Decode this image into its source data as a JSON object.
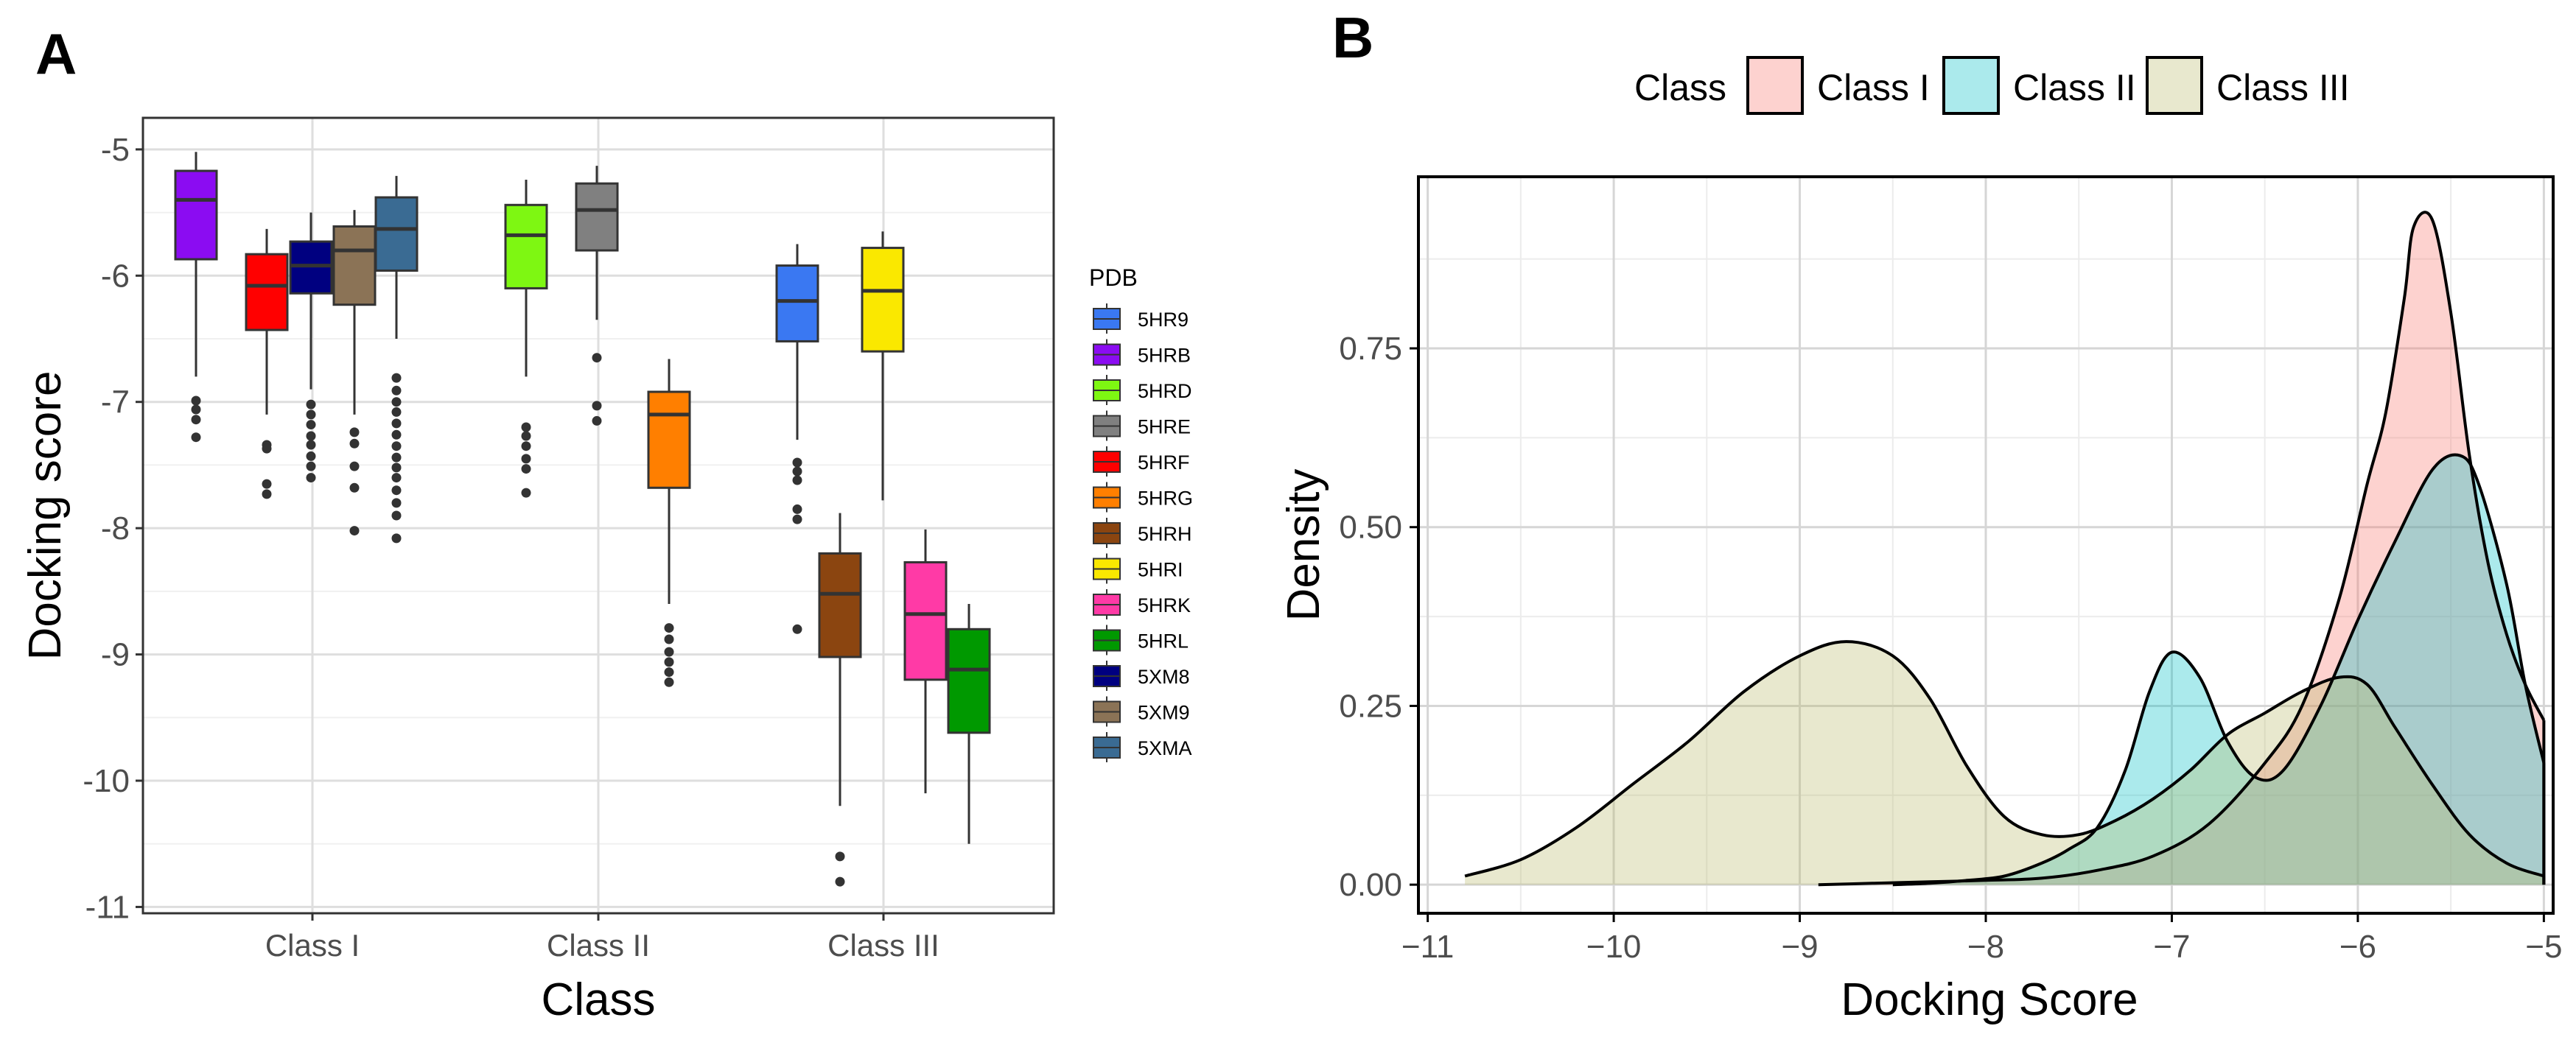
{
  "panels": {
    "a_label": "A",
    "b_label": "B"
  },
  "chart_data": [
    {
      "type": "box",
      "panel": "A",
      "title": "",
      "xlabel": "Class",
      "ylabel": "Docking score",
      "categories": [
        "Class I",
        "Class II",
        "Class III"
      ],
      "ylim": [
        -11.05,
        -4.75
      ],
      "yticks": [
        -5,
        -6,
        -7,
        -8,
        -9,
        -10,
        -11
      ],
      "grid": true,
      "legend": {
        "title": "PDB",
        "position": "right"
      },
      "pdb_legend": [
        {
          "name": "5HR9",
          "color": "#3a78f2"
        },
        {
          "name": "5HRB",
          "color": "#8b0cf2"
        },
        {
          "name": "5HRD",
          "color": "#7ef712"
        },
        {
          "name": "5HRE",
          "color": "#808080"
        },
        {
          "name": "5HRF",
          "color": "#ff0000"
        },
        {
          "name": "5HRG",
          "color": "#ff7f00"
        },
        {
          "name": "5HRH",
          "color": "#8b4510"
        },
        {
          "name": "5HRI",
          "color": "#fae800"
        },
        {
          "name": "5HRK",
          "color": "#ff3aa6"
        },
        {
          "name": "5HRL",
          "color": "#009900"
        },
        {
          "name": "5XM8",
          "color": "#000080"
        },
        {
          "name": "5XM9",
          "color": "#8b7356"
        },
        {
          "name": "5XMA",
          "color": "#3a6b93"
        }
      ],
      "boxes": [
        {
          "pdb": "5HRB",
          "class": "Class I",
          "min": -6.8,
          "q1": -5.87,
          "median": -5.4,
          "q3": -5.17,
          "max": -5.02,
          "outliers": [
            -6.99,
            -7.06,
            -7.14,
            -7.28
          ]
        },
        {
          "pdb": "5HRF",
          "class": "Class I",
          "min": -7.1,
          "q1": -6.43,
          "median": -6.08,
          "q3": -5.83,
          "max": -5.63,
          "outliers": [
            -7.34,
            -7.37,
            -7.65,
            -7.73
          ]
        },
        {
          "pdb": "5XM8",
          "class": "Class I",
          "min": -6.9,
          "q1": -6.14,
          "median": -5.92,
          "q3": -5.73,
          "max": -5.5,
          "outliers": [
            -7.02,
            -7.1,
            -7.18,
            -7.27,
            -7.34,
            -7.43,
            -7.51,
            -7.6
          ]
        },
        {
          "pdb": "5XM9",
          "class": "Class I",
          "min": -7.1,
          "q1": -6.23,
          "median": -5.8,
          "q3": -5.61,
          "max": -5.48,
          "outliers": [
            -7.24,
            -7.33,
            -7.51,
            -7.68,
            -8.02
          ]
        },
        {
          "pdb": "5XMA",
          "class": "Class I",
          "min": -6.5,
          "q1": -5.96,
          "median": -5.63,
          "q3": -5.38,
          "max": -5.21,
          "outliers": [
            -6.81,
            -6.91,
            -7.0,
            -7.08,
            -7.17,
            -7.26,
            -7.35,
            -7.44,
            -7.52,
            -7.6,
            -7.7,
            -7.8,
            -7.9,
            -8.08
          ]
        },
        {
          "pdb": "5HRD",
          "class": "Class II",
          "min": -6.8,
          "q1": -6.1,
          "median": -5.68,
          "q3": -5.44,
          "max": -5.24,
          "outliers": [
            -7.2,
            -7.27,
            -7.35,
            -7.45,
            -7.53,
            -7.72
          ]
        },
        {
          "pdb": "5HRE",
          "class": "Class II",
          "min": -6.35,
          "q1": -5.8,
          "median": -5.48,
          "q3": -5.27,
          "max": -5.13,
          "outliers": [
            -6.65,
            -7.03,
            -7.15
          ]
        },
        {
          "pdb": "5HRG",
          "class": "Class II",
          "min": -8.6,
          "q1": -7.68,
          "median": -7.1,
          "q3": -6.92,
          "max": -6.66,
          "outliers": [
            -8.79,
            -8.88,
            -8.98,
            -9.06,
            -9.14,
            -9.22
          ]
        },
        {
          "pdb": "5HR9",
          "class": "Class III",
          "min": -7.3,
          "q1": -6.52,
          "median": -6.2,
          "q3": -5.92,
          "max": -5.75,
          "outliers": [
            -7.48,
            -7.55,
            -7.62,
            -7.85,
            -7.93,
            -8.8
          ]
        },
        {
          "pdb": "5HRI",
          "class": "Class III",
          "min": -7.78,
          "q1": -6.6,
          "median": -6.12,
          "q3": -5.78,
          "max": -5.65,
          "outliers": []
        },
        {
          "pdb": "5HRH",
          "class": "Class III",
          "min": -10.2,
          "q1": -9.02,
          "median": -8.52,
          "q3": -8.2,
          "max": -7.88,
          "outliers": [
            -10.6,
            -10.8
          ]
        },
        {
          "pdb": "5HRK",
          "class": "Class III",
          "min": -10.1,
          "q1": -9.2,
          "median": -8.68,
          "q3": -8.27,
          "max": -8.01,
          "outliers": []
        },
        {
          "pdb": "5HRL",
          "class": "Class III",
          "min": -10.5,
          "q1": -9.62,
          "median": -9.12,
          "q3": -8.8,
          "max": -8.6,
          "outliers": []
        }
      ]
    },
    {
      "type": "area",
      "panel": "B",
      "title": "",
      "xlabel": "Docking Score",
      "ylabel": "Density",
      "xlim": [
        -11.05,
        -4.95
      ],
      "ylim": [
        -0.04,
        0.99
      ],
      "xticks": [
        -11,
        -10,
        -9,
        -8,
        -7,
        -6,
        -5
      ],
      "yticks": [
        0.0,
        0.25,
        0.5,
        0.75
      ],
      "ytick_labels": [
        "0.00",
        "0.25",
        "0.50",
        "0.75"
      ],
      "grid": true,
      "legend": {
        "title": "Class",
        "position": "top"
      },
      "series": [
        {
          "name": "Class I",
          "fill": "#f8766d",
          "points": [
            [
              -8.9,
              0
            ],
            [
              -8.6,
              0.002
            ],
            [
              -8.3,
              0.004
            ],
            [
              -8.0,
              0.006
            ],
            [
              -7.7,
              0.009
            ],
            [
              -7.4,
              0.02
            ],
            [
              -7.1,
              0.04
            ],
            [
              -6.8,
              0.085
            ],
            [
              -6.5,
              0.17
            ],
            [
              -6.3,
              0.25
            ],
            [
              -6.1,
              0.4
            ],
            [
              -5.95,
              0.56
            ],
            [
              -5.85,
              0.66
            ],
            [
              -5.75,
              0.82
            ],
            [
              -5.7,
              0.92
            ],
            [
              -5.6,
              0.93
            ],
            [
              -5.5,
              0.8
            ],
            [
              -5.4,
              0.6
            ],
            [
              -5.3,
              0.45
            ],
            [
              -5.2,
              0.35
            ],
            [
              -5.1,
              0.28
            ],
            [
              -5.0,
              0.23
            ]
          ]
        },
        {
          "name": "Class II",
          "fill": "#00bfc4",
          "points": [
            [
              -8.5,
              0
            ],
            [
              -8.3,
              0.002
            ],
            [
              -8.1,
              0.006
            ],
            [
              -7.9,
              0.012
            ],
            [
              -7.7,
              0.03
            ],
            [
              -7.55,
              0.05
            ],
            [
              -7.4,
              0.08
            ],
            [
              -7.25,
              0.16
            ],
            [
              -7.12,
              0.27
            ],
            [
              -7.0,
              0.325
            ],
            [
              -6.85,
              0.29
            ],
            [
              -6.7,
              0.2
            ],
            [
              -6.55,
              0.15
            ],
            [
              -6.4,
              0.16
            ],
            [
              -6.2,
              0.25
            ],
            [
              -6.0,
              0.37
            ],
            [
              -5.8,
              0.48
            ],
            [
              -5.6,
              0.58
            ],
            [
              -5.45,
              0.6
            ],
            [
              -5.35,
              0.56
            ],
            [
              -5.2,
              0.42
            ],
            [
              -5.1,
              0.28
            ],
            [
              -5.0,
              0.17
            ]
          ]
        },
        {
          "name": "Class III",
          "fill": "#b8b86a",
          "points": [
            [
              -10.8,
              0.012
            ],
            [
              -10.5,
              0.035
            ],
            [
              -10.2,
              0.08
            ],
            [
              -9.9,
              0.14
            ],
            [
              -9.6,
              0.2
            ],
            [
              -9.3,
              0.27
            ],
            [
              -9.0,
              0.32
            ],
            [
              -8.75,
              0.34
            ],
            [
              -8.5,
              0.32
            ],
            [
              -8.3,
              0.26
            ],
            [
              -8.1,
              0.165
            ],
            [
              -7.9,
              0.095
            ],
            [
              -7.7,
              0.07
            ],
            [
              -7.5,
              0.07
            ],
            [
              -7.3,
              0.09
            ],
            [
              -7.1,
              0.12
            ],
            [
              -6.9,
              0.16
            ],
            [
              -6.7,
              0.21
            ],
            [
              -6.5,
              0.24
            ],
            [
              -6.3,
              0.27
            ],
            [
              -6.1,
              0.29
            ],
            [
              -5.95,
              0.28
            ],
            [
              -5.8,
              0.22
            ],
            [
              -5.6,
              0.14
            ],
            [
              -5.4,
              0.07
            ],
            [
              -5.2,
              0.03
            ],
            [
              -5.0,
              0.012
            ]
          ]
        }
      ]
    }
  ]
}
